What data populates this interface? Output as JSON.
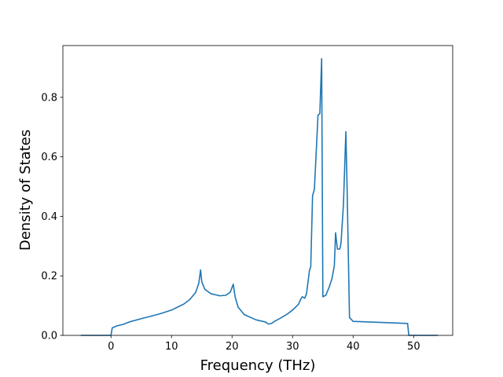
{
  "chart_data": {
    "type": "line",
    "xlabel": "Frequency (THz)",
    "ylabel": "Density of States",
    "color": "#1f77b4",
    "x": [
      -5,
      0,
      0.2,
      1,
      2,
      3,
      5,
      8,
      10,
      12,
      13,
      14,
      14.5,
      14.8,
      15,
      15.5,
      16.5,
      18,
      19,
      19.7,
      20.2,
      20.5,
      21,
      22,
      24,
      25.5,
      26,
      26.5,
      27,
      28,
      29,
      30,
      31,
      31.3,
      31.6,
      32,
      32.3,
      32.8,
      33,
      33.3,
      33.6,
      34.2,
      34.5,
      34.8,
      35,
      35.5,
      36,
      36.5,
      36.9,
      37.1,
      37.4,
      37.8,
      38,
      38.4,
      38.8,
      39,
      39.4,
      40,
      49,
      49.2,
      54
    ],
    "values": [
      0,
      0,
      0.025,
      0.032,
      0.037,
      0.045,
      0.056,
      0.072,
      0.085,
      0.105,
      0.12,
      0.145,
      0.175,
      0.22,
      0.18,
      0.155,
      0.14,
      0.133,
      0.135,
      0.145,
      0.172,
      0.13,
      0.095,
      0.07,
      0.052,
      0.045,
      0.038,
      0.04,
      0.047,
      0.058,
      0.07,
      0.085,
      0.105,
      0.12,
      0.13,
      0.125,
      0.14,
      0.22,
      0.23,
      0.47,
      0.49,
      0.74,
      0.745,
      0.93,
      0.13,
      0.135,
      0.16,
      0.19,
      0.235,
      0.345,
      0.29,
      0.29,
      0.31,
      0.44,
      0.685,
      0.5,
      0.06,
      0.047,
      0.04,
      0,
      0
    ],
    "xlim": [
      -7.95,
      56.45
    ],
    "ylim": [
      0,
      0.974
    ],
    "xticks": [
      0,
      10,
      20,
      30,
      40,
      50
    ],
    "yticks": [
      {
        "value": 0,
        "label": "0.0"
      },
      0.2,
      0.4,
      0.6,
      0.8
    ],
    "grid": false
  }
}
